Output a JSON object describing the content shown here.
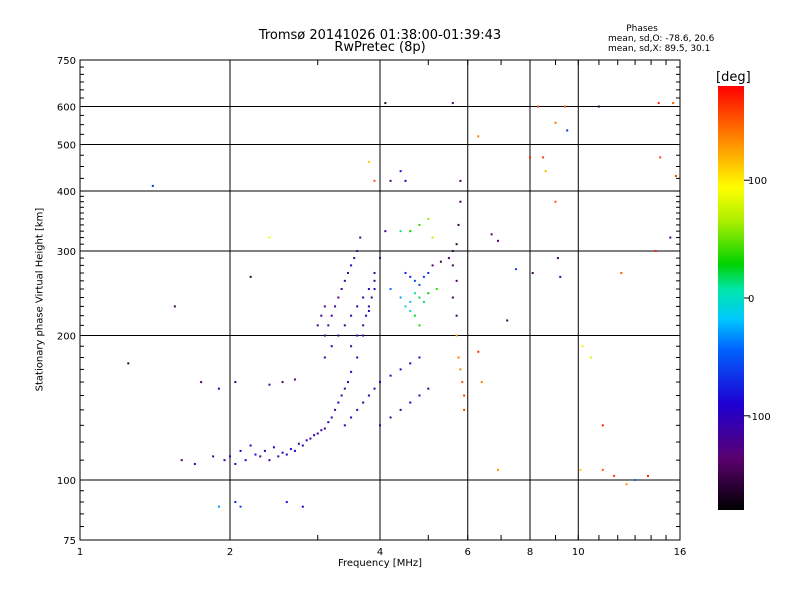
{
  "chart_data": {
    "type": "scatter",
    "title": "Tromsø 20141026 01:38:00-01:39:43",
    "subtitle": "RwPretec (8p)",
    "xlabel": "Frequency [MHz]",
    "ylabel": "Stationary phase Virtual Height [km]",
    "x_scale": "log",
    "y_scale": "log",
    "xlim": [
      1,
      16
    ],
    "ylim": [
      75,
      750
    ],
    "x_ticks": [
      "1",
      "2",
      "4",
      "6",
      "8",
      "10",
      "16"
    ],
    "x_tick_values": [
      1,
      2,
      4,
      6,
      8,
      10,
      16
    ],
    "y_ticks": [
      "75",
      "100",
      "200",
      "300",
      "400",
      "500",
      "600",
      "750"
    ],
    "y_tick_values": [
      75,
      100,
      200,
      300,
      400,
      500,
      600,
      750
    ],
    "grid": true,
    "phases": {
      "title": "Phases",
      "line1": "mean, sd,O: -78.6, 20.6",
      "line2": "mean, sd,X:  89.5, 30.1"
    },
    "colorbar": {
      "unit": "[deg]",
      "range": [
        -180,
        180
      ],
      "ticks": [
        "100",
        "0",
        "-100"
      ],
      "tick_values": [
        100,
        0,
        -100
      ]
    },
    "points": [
      [
        1.95,
        110,
        -120
      ],
      [
        2.0,
        112,
        -110
      ],
      [
        2.1,
        115,
        -100
      ],
      [
        2.2,
        118,
        -95
      ],
      [
        2.3,
        112,
        -115
      ],
      [
        2.4,
        110,
        -110
      ],
      [
        2.5,
        112,
        -105
      ],
      [
        2.6,
        113,
        -100
      ],
      [
        2.7,
        115,
        -95
      ],
      [
        2.8,
        118,
        -100
      ],
      [
        2.9,
        122,
        -110
      ],
      [
        3.0,
        125,
        -115
      ],
      [
        3.1,
        128,
        -120
      ],
      [
        3.2,
        135,
        -110
      ],
      [
        3.3,
        145,
        -105
      ],
      [
        3.4,
        155,
        -115
      ],
      [
        3.5,
        168,
        -100
      ],
      [
        3.6,
        180,
        -110
      ],
      [
        3.7,
        200,
        -105
      ],
      [
        3.8,
        225,
        -100
      ],
      [
        3.9,
        250,
        -110
      ],
      [
        4.0,
        290,
        -120
      ],
      [
        4.1,
        330,
        -115
      ],
      [
        4.2,
        420,
        -130
      ],
      [
        2.05,
        108,
        -90
      ],
      [
        2.15,
        110,
        -100
      ],
      [
        2.25,
        113,
        -85
      ],
      [
        2.35,
        115,
        -95
      ],
      [
        2.45,
        117,
        -90
      ],
      [
        2.55,
        114,
        -100
      ],
      [
        2.65,
        116,
        -90
      ],
      [
        2.75,
        119,
        -110
      ],
      [
        2.85,
        121,
        -95
      ],
      [
        2.95,
        124,
        -100
      ],
      [
        3.05,
        127,
        -105
      ],
      [
        3.15,
        132,
        -95
      ],
      [
        3.25,
        140,
        -120
      ],
      [
        3.35,
        150,
        -110
      ],
      [
        3.45,
        160,
        -100
      ],
      [
        3.1,
        200,
        -115
      ],
      [
        3.15,
        210,
        -120
      ],
      [
        3.2,
        220,
        -110
      ],
      [
        3.25,
        230,
        -115
      ],
      [
        3.3,
        240,
        -125
      ],
      [
        3.35,
        250,
        -120
      ],
      [
        3.4,
        260,
        -110
      ],
      [
        3.45,
        270,
        -115
      ],
      [
        3.5,
        280,
        -105
      ],
      [
        3.55,
        290,
        -115
      ],
      [
        3.6,
        300,
        -120
      ],
      [
        3.65,
        320,
        -125
      ],
      [
        3.1,
        180,
        -110
      ],
      [
        3.2,
        190,
        -105
      ],
      [
        3.3,
        200,
        -115
      ],
      [
        3.4,
        210,
        -120
      ],
      [
        3.5,
        220,
        -110
      ],
      [
        3.6,
        230,
        -105
      ],
      [
        3.7,
        240,
        -115
      ],
      [
        3.8,
        250,
        -100
      ],
      [
        3.9,
        260,
        -110
      ],
      [
        3.0,
        210,
        -120
      ],
      [
        3.05,
        220,
        -115
      ],
      [
        3.1,
        230,
        -125
      ],
      [
        3.5,
        190,
        -110
      ],
      [
        3.6,
        200,
        -120
      ],
      [
        3.7,
        210,
        -115
      ],
      [
        3.75,
        220,
        -110
      ],
      [
        3.8,
        230,
        -105
      ],
      [
        3.85,
        240,
        -110
      ],
      [
        3.9,
        270,
        -115
      ],
      [
        3.4,
        130,
        -100
      ],
      [
        3.5,
        135,
        -105
      ],
      [
        3.6,
        140,
        -110
      ],
      [
        3.7,
        145,
        -115
      ],
      [
        3.8,
        150,
        -105
      ],
      [
        3.9,
        155,
        -100
      ],
      [
        4.0,
        160,
        -95
      ],
      [
        4.2,
        165,
        -100
      ],
      [
        4.4,
        170,
        -110
      ],
      [
        4.6,
        175,
        -105
      ],
      [
        4.8,
        180,
        -100
      ],
      [
        4.0,
        130,
        -105
      ],
      [
        4.2,
        135,
        -110
      ],
      [
        4.4,
        140,
        -115
      ],
      [
        4.6,
        145,
        -105
      ],
      [
        4.8,
        150,
        -100
      ],
      [
        5.0,
        155,
        -110
      ],
      [
        4.2,
        250,
        -40
      ],
      [
        4.4,
        240,
        -30
      ],
      [
        4.6,
        235,
        -20
      ],
      [
        4.7,
        245,
        10
      ],
      [
        4.8,
        240,
        20
      ],
      [
        5.0,
        245,
        30
      ],
      [
        5.2,
        250,
        40
      ],
      [
        4.5,
        230,
        -10
      ],
      [
        4.6,
        225,
        0
      ],
      [
        4.7,
        220,
        25
      ],
      [
        4.9,
        235,
        15
      ],
      [
        4.8,
        210,
        35
      ],
      [
        4.5,
        270,
        -70
      ],
      [
        4.6,
        265,
        -75
      ],
      [
        4.7,
        260,
        -60
      ],
      [
        4.8,
        255,
        -55
      ],
      [
        4.9,
        265,
        -65
      ],
      [
        5.0,
        270,
        -70
      ],
      [
        5.1,
        280,
        -140
      ],
      [
        5.3,
        285,
        -150
      ],
      [
        5.5,
        290,
        -145
      ],
      [
        5.6,
        300,
        -150
      ],
      [
        5.7,
        310,
        -155
      ],
      [
        5.6,
        280,
        -150
      ],
      [
        5.7,
        260,
        -145
      ],
      [
        5.6,
        240,
        -150
      ],
      [
        5.7,
        220,
        -150
      ],
      [
        5.75,
        340,
        -150
      ],
      [
        5.8,
        380,
        -150
      ],
      [
        5.8,
        420,
        -145
      ],
      [
        5.7,
        200,
        130
      ],
      [
        5.75,
        180,
        140
      ],
      [
        5.8,
        170,
        135
      ],
      [
        5.85,
        160,
        150
      ],
      [
        5.9,
        150,
        160
      ],
      [
        5.9,
        140,
        155
      ],
      [
        4.6,
        330,
        30
      ],
      [
        4.8,
        340,
        40
      ],
      [
        5.0,
        350,
        60
      ],
      [
        5.1,
        320,
        70
      ],
      [
        4.4,
        330,
        10
      ],
      [
        4.4,
        440,
        -80
      ],
      [
        4.5,
        420,
        -90
      ],
      [
        3.8,
        460,
        110
      ],
      [
        3.9,
        420,
        150
      ],
      [
        4.1,
        610,
        -160
      ],
      [
        5.6,
        610,
        -130
      ],
      [
        2.05,
        90,
        -70
      ],
      [
        2.1,
        88,
        -60
      ],
      [
        2.6,
        90,
        -80
      ],
      [
        2.8,
        88,
        -90
      ],
      [
        1.9,
        88,
        -30
      ],
      [
        1.55,
        230,
        -150
      ],
      [
        1.25,
        175,
        -160
      ],
      [
        1.4,
        410,
        -70
      ],
      [
        2.2,
        265,
        -160
      ],
      [
        2.4,
        320,
        90
      ],
      [
        1.75,
        160,
        -130
      ],
      [
        1.9,
        155,
        -100
      ],
      [
        2.05,
        160,
        -110
      ],
      [
        2.4,
        158,
        -120
      ],
      [
        2.55,
        160,
        -140
      ],
      [
        2.7,
        162,
        -130
      ],
      [
        1.6,
        110,
        -140
      ],
      [
        1.7,
        108,
        -120
      ],
      [
        1.85,
        112,
        -115
      ],
      [
        6.3,
        185,
        170
      ],
      [
        6.4,
        160,
        140
      ],
      [
        6.9,
        105,
        130
      ],
      [
        7.5,
        275,
        -60
      ],
      [
        8.1,
        270,
        -150
      ],
      [
        8.3,
        600,
        160
      ],
      [
        8.5,
        470,
        160
      ],
      [
        8.6,
        440,
        120
      ],
      [
        9.0,
        555,
        140
      ],
      [
        9.0,
        380,
        150
      ],
      [
        9.1,
        290,
        -150
      ],
      [
        9.2,
        265,
        -100
      ],
      [
        9.4,
        600,
        150
      ],
      [
        9.5,
        535,
        -70
      ],
      [
        10.2,
        190,
        100
      ],
      [
        10.1,
        105,
        110
      ],
      [
        10.6,
        180,
        80
      ],
      [
        11.0,
        600,
        -150
      ],
      [
        11.2,
        130,
        170
      ],
      [
        11.2,
        105,
        150
      ],
      [
        11.8,
        102,
        160
      ],
      [
        12.2,
        270,
        150
      ],
      [
        12.5,
        98,
        130
      ],
      [
        13.0,
        100,
        -40
      ],
      [
        13.8,
        102,
        170
      ],
      [
        14.3,
        300,
        170
      ],
      [
        14.5,
        610,
        170
      ],
      [
        14.6,
        470,
        160
      ],
      [
        15.3,
        320,
        -120
      ],
      [
        15.5,
        610,
        150
      ],
      [
        15.7,
        430,
        160
      ],
      [
        6.7,
        325,
        -140
      ],
      [
        6.9,
        315,
        -140
      ],
      [
        6.3,
        520,
        140
      ],
      [
        7.2,
        215,
        -150
      ],
      [
        8.0,
        470,
        170
      ]
    ]
  }
}
